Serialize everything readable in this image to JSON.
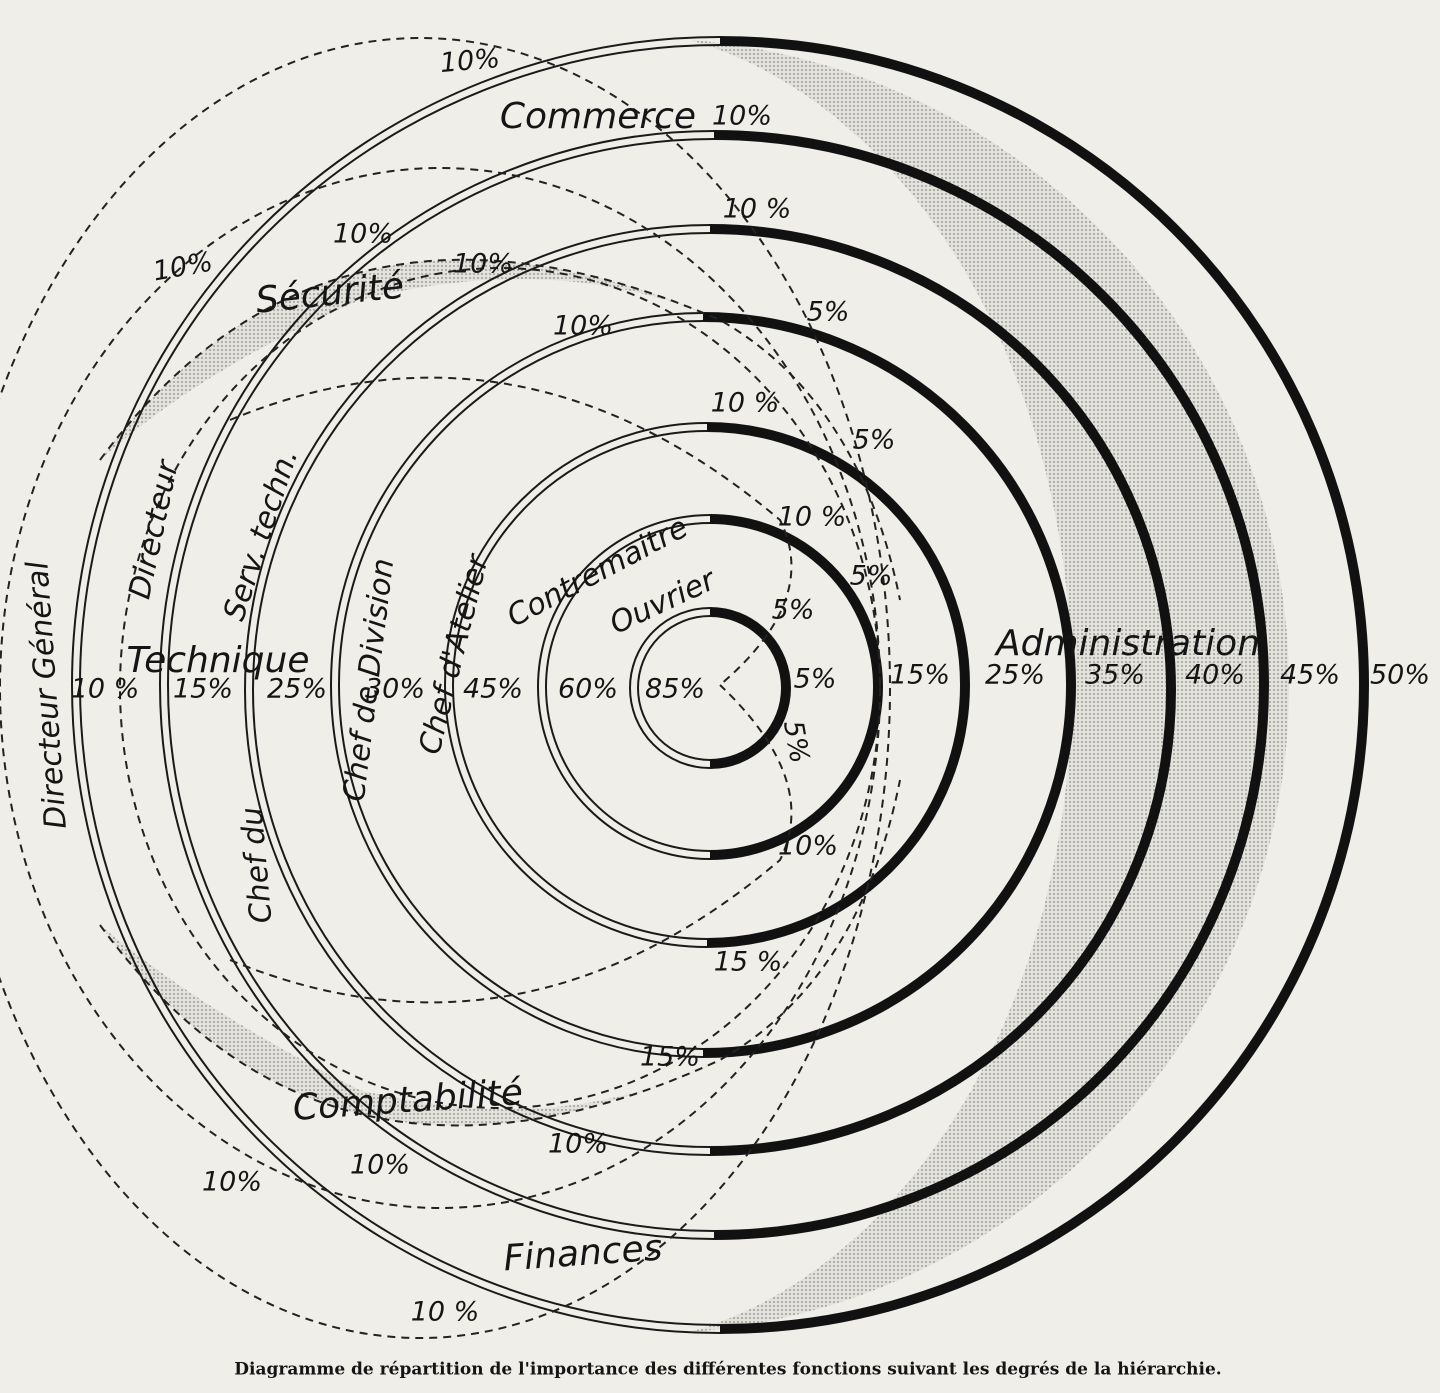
{
  "caption": "Diagramme de répartition de l'importance des différentes fonctions suivant les degrés de la hiérarchie.",
  "functions": [
    "Commerce",
    "Sécurité",
    "Technique",
    "Comptabilité",
    "Finances",
    "Administration"
  ],
  "levels": [
    "Directeur Général",
    "Directeur",
    "Serv. techn.",
    "Chef du",
    "Chef de Division",
    "Chef d'Atelier",
    "Contremaitre",
    "Ouvrier"
  ],
  "technique_percentages": [
    "10 %",
    "15%",
    "25%",
    "30%",
    "45%",
    "60%",
    "85%"
  ],
  "administration_percentages": [
    "15%",
    "25%",
    "35%",
    "40%",
    "45%",
    "50%"
  ],
  "other_percentages": [
    "10%",
    "10%",
    "10%",
    "10%",
    "10%",
    "10 %",
    "10%",
    "5%",
    "10 %",
    "5%",
    "10 %",
    "5%",
    "5%",
    "5%",
    "5%",
    "10%",
    "15 %",
    "15%",
    "10%",
    "10%",
    "10%",
    "10 %"
  ]
}
